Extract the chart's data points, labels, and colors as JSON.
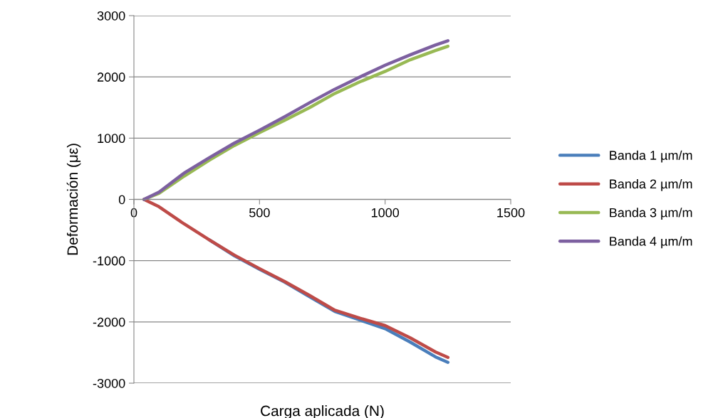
{
  "chart_data": {
    "type": "line",
    "xlabel": "Carga aplicada (N)",
    "ylabel": "Deformación (με)",
    "xlim": [
      0,
      1500
    ],
    "xticks": [
      0,
      500,
      1000,
      1500
    ],
    "ylim": [
      -3000,
      3000
    ],
    "yticks": [
      -3000,
      -2000,
      -1000,
      0,
      1000,
      2000,
      3000
    ],
    "grid": "y",
    "legend": "right",
    "marker": "none",
    "line_style": "solid",
    "x": [
      40,
      100,
      200,
      300,
      400,
      500,
      600,
      700,
      800,
      900,
      1000,
      1100,
      1200,
      1250
    ],
    "series": [
      {
        "name": "Banda 1 µm/m",
        "color": "#4a7ebb",
        "values": [
          null,
          null,
          null,
          -660,
          -920,
          -1140,
          -1350,
          -1590,
          -1830,
          -1970,
          -2110,
          -2330,
          -2570,
          -2660
        ]
      },
      {
        "name": "Banda 2 µm/m",
        "color": "#be4b48",
        "values": [
          0,
          -120,
          -400,
          -660,
          -910,
          -1130,
          -1340,
          -1570,
          -1810,
          -1940,
          -2060,
          -2260,
          -2490,
          -2580
        ]
      },
      {
        "name": "Banda 3 µm/m",
        "color": "#98b954",
        "values": [
          0,
          100,
          380,
          640,
          880,
          1090,
          1290,
          1500,
          1730,
          1920,
          2090,
          2280,
          2430,
          2500
        ]
      },
      {
        "name": "Banda 4 µm/m",
        "color": "#7d60a0",
        "values": [
          0,
          120,
          430,
          680,
          920,
          1130,
          1350,
          1580,
          1800,
          2000,
          2190,
          2360,
          2520,
          2590
        ]
      }
    ]
  }
}
